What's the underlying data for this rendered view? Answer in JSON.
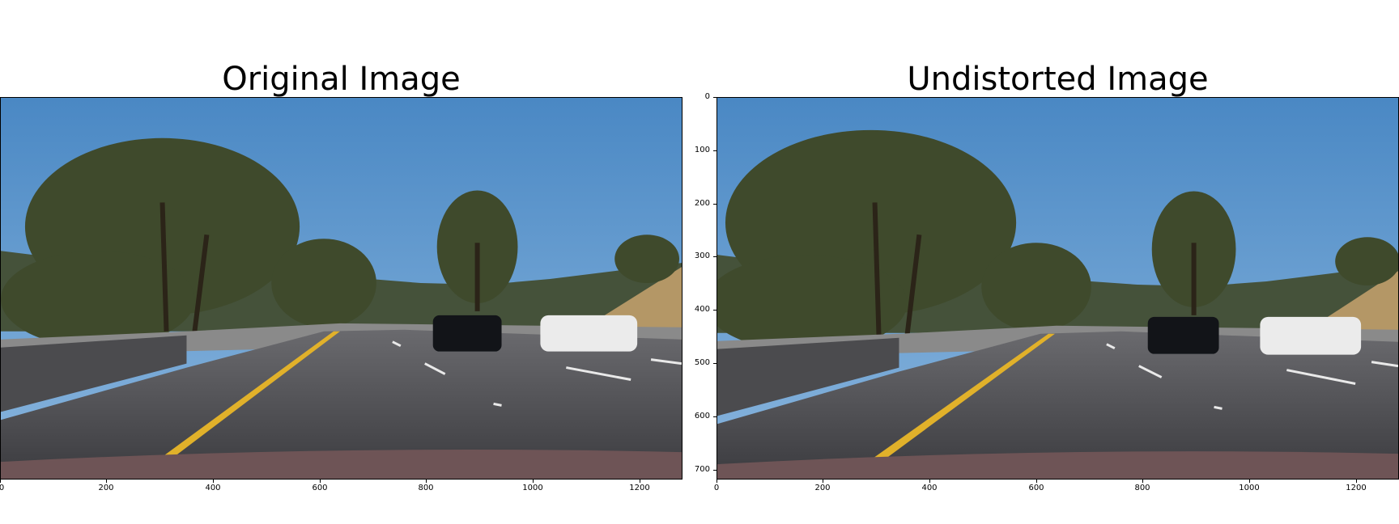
{
  "figure": {
    "left_panel": {
      "title": "Original Image",
      "x_ticks": [
        "0",
        "200",
        "400",
        "600",
        "800",
        "1000",
        "1200"
      ]
    },
    "right_panel": {
      "title": "Undistorted Image",
      "x_ticks": [
        "0",
        "200",
        "400",
        "600",
        "800",
        "1000",
        "1200"
      ],
      "y_ticks": [
        "0",
        "100",
        "200",
        "300",
        "400",
        "500",
        "600",
        "700"
      ]
    }
  }
}
